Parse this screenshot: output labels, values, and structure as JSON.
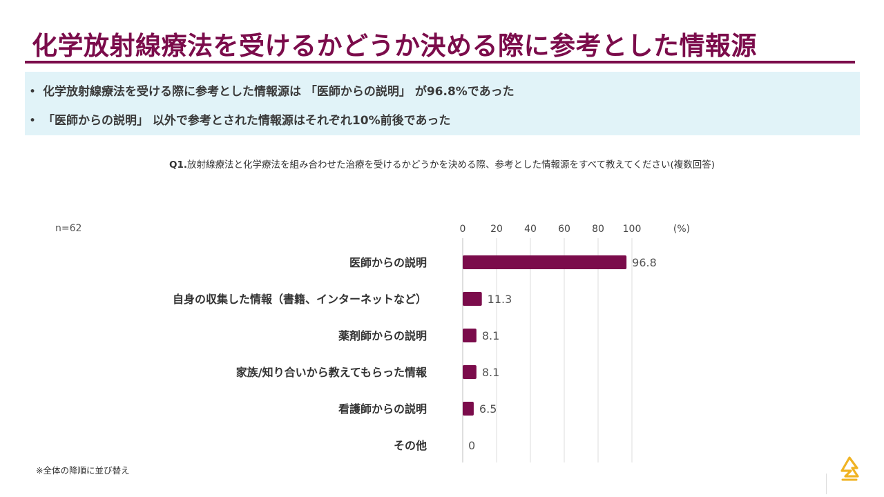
{
  "title": "化学放射線療法を受けるかどうか決める際に参考とした情報源",
  "summary": [
    "化学放射線療法を受ける際に参考とした情報源は 「医師からの説明」 が96.8%であった",
    "「医師からの説明」 以外で参考とされた情報源はそれぞれ10%前後であった"
  ],
  "question": {
    "number": "Q1.",
    "text": "放射線療法と化学療法を組み合わせた治療を受けるかどうかを決める際、参考とした情報源をすべて教えてください(複数回答)"
  },
  "sample_size": "n=62",
  "footnote": "※全体の降順に並び替え",
  "colors": {
    "accent": "#7b0c4b",
    "summary_bg": "#e1f3f8",
    "logo": "#f0b323"
  },
  "logo_icon": "astrazeneca-symbol-icon",
  "chart_data": {
    "type": "bar",
    "orientation": "horizontal",
    "categories": [
      "医師からの説明",
      "自身の収集した情報（書籍、インターネットなど）",
      "薬剤師からの説明",
      "家族/知り合いから教えてもらった情報",
      "看護師からの説明",
      "その他"
    ],
    "values": [
      96.8,
      11.3,
      8.1,
      8.1,
      6.5,
      0
    ],
    "value_labels": [
      "96.8",
      "11.3",
      "8.1",
      "8.1",
      "6.5",
      "0"
    ],
    "x_ticks": [
      0,
      20,
      40,
      60,
      80,
      100
    ],
    "x_unit": "(%)",
    "xlim": [
      0,
      100
    ],
    "grid": true,
    "axis_position": "top"
  }
}
